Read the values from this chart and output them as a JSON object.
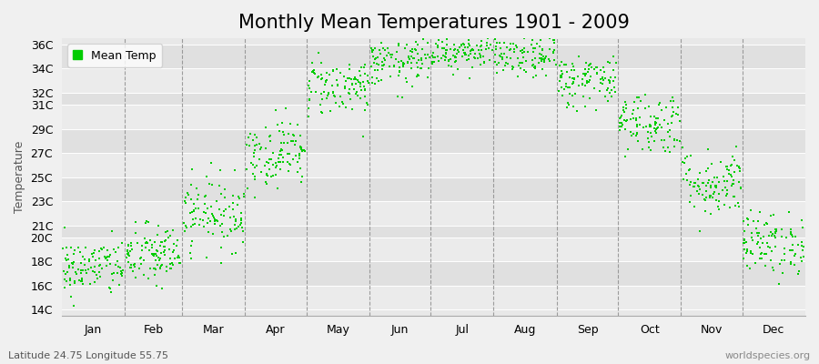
{
  "title": "Monthly Mean Temperatures 1901 - 2009",
  "ylabel": "Temperature",
  "bottom_left_text": "Latitude 24.75 Longitude 55.75",
  "bottom_right_text": "worldspecies.org",
  "legend_label": "Mean Temp",
  "dot_color": "#00cc00",
  "fig_bg_color": "#f0f0f0",
  "plot_bg_color": "#e8e8e8",
  "ylim": [
    13.5,
    36.5
  ],
  "yticks": [
    14,
    16,
    18,
    20,
    21,
    23,
    25,
    27,
    29,
    31,
    32,
    34,
    36
  ],
  "ytick_labels": [
    "14C",
    "16C",
    "18C",
    "20C",
    "21C",
    "23C",
    "25C",
    "27C",
    "29C",
    "31C",
    "32C",
    "34C",
    "36C"
  ],
  "months": [
    "Jan",
    "Feb",
    "Mar",
    "Apr",
    "May",
    "Jun",
    "Jul",
    "Aug",
    "Sep",
    "Oct",
    "Nov",
    "Dec"
  ],
  "month_days": [
    31,
    28,
    31,
    30,
    31,
    30,
    31,
    31,
    30,
    31,
    30,
    31
  ],
  "month_means": [
    17.5,
    18.5,
    22.0,
    27.0,
    32.5,
    34.5,
    35.5,
    35.0,
    33.0,
    29.5,
    24.5,
    19.5
  ],
  "month_stds": [
    1.2,
    1.3,
    1.5,
    1.4,
    1.2,
    1.0,
    0.8,
    0.9,
    1.1,
    1.3,
    1.4,
    1.3
  ],
  "n_years": 109,
  "title_fontsize": 15,
  "label_fontsize": 9,
  "tick_fontsize": 9,
  "band_colors": [
    "#ebebeb",
    "#e0e0e0"
  ]
}
